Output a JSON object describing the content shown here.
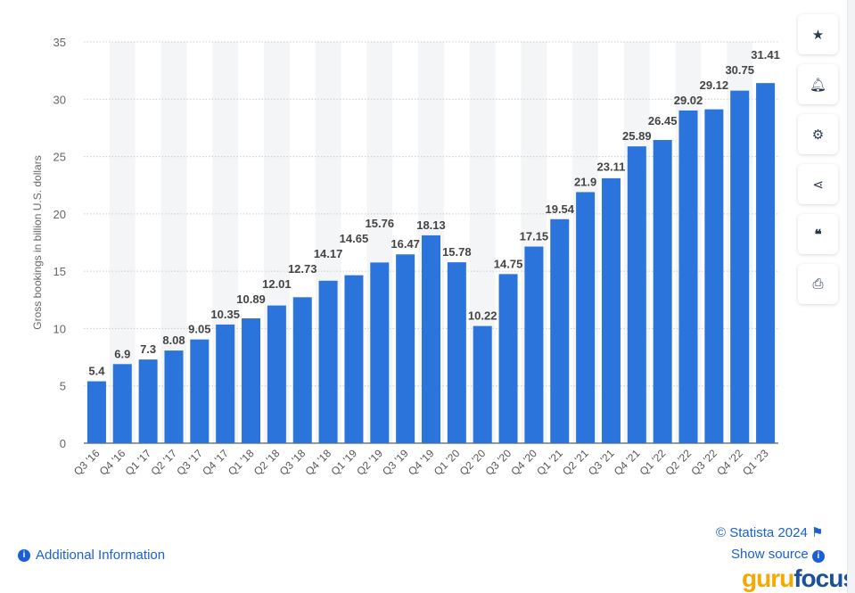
{
  "chart_data": {
    "type": "bar",
    "categories": [
      "Q3 '16",
      "Q4 '16",
      "Q1 '17",
      "Q2 '17",
      "Q3 '17",
      "Q4 '17",
      "Q1 '18",
      "Q2 '18",
      "Q3 '18",
      "Q4 '18",
      "Q1 '19",
      "Q2 '19",
      "Q3 '19",
      "Q4 '19",
      "Q1 '20",
      "Q2 '20",
      "Q3 '20",
      "Q4 '20",
      "Q1 '21",
      "Q2 '21",
      "Q3 '21",
      "Q4 '21",
      "Q1 '22",
      "Q2 '22",
      "Q3 '22",
      "Q4 '22",
      "Q1 '23"
    ],
    "values": [
      5.4,
      6.9,
      7.3,
      8.08,
      9.05,
      10.35,
      10.89,
      12.01,
      12.73,
      14.17,
      14.65,
      15.76,
      16.47,
      18.13,
      15.78,
      10.22,
      14.75,
      17.15,
      19.54,
      21.9,
      23.11,
      25.89,
      26.45,
      29.02,
      29.12,
      30.75,
      31.41
    ],
    "ylabel": "Gross bookings in billion U.S. dollars",
    "ylim": [
      0,
      35
    ],
    "yticks": [
      0,
      5,
      10,
      15,
      20,
      25,
      30,
      35
    ],
    "grid": true,
    "bar_color": "#2a74dc"
  },
  "sidebar": {
    "icons": [
      "star-icon",
      "bell-icon",
      "gear-icon",
      "share-icon",
      "quote-icon",
      "print-icon"
    ],
    "glyphs": [
      "★",
      "🔔",
      "⚙",
      "⤴",
      "❝",
      "⎙"
    ]
  },
  "footer": {
    "additional_info": "Additional Information",
    "copyright": "© Statista 2024",
    "show_source": "Show source",
    "watermark": "gurufocus"
  }
}
